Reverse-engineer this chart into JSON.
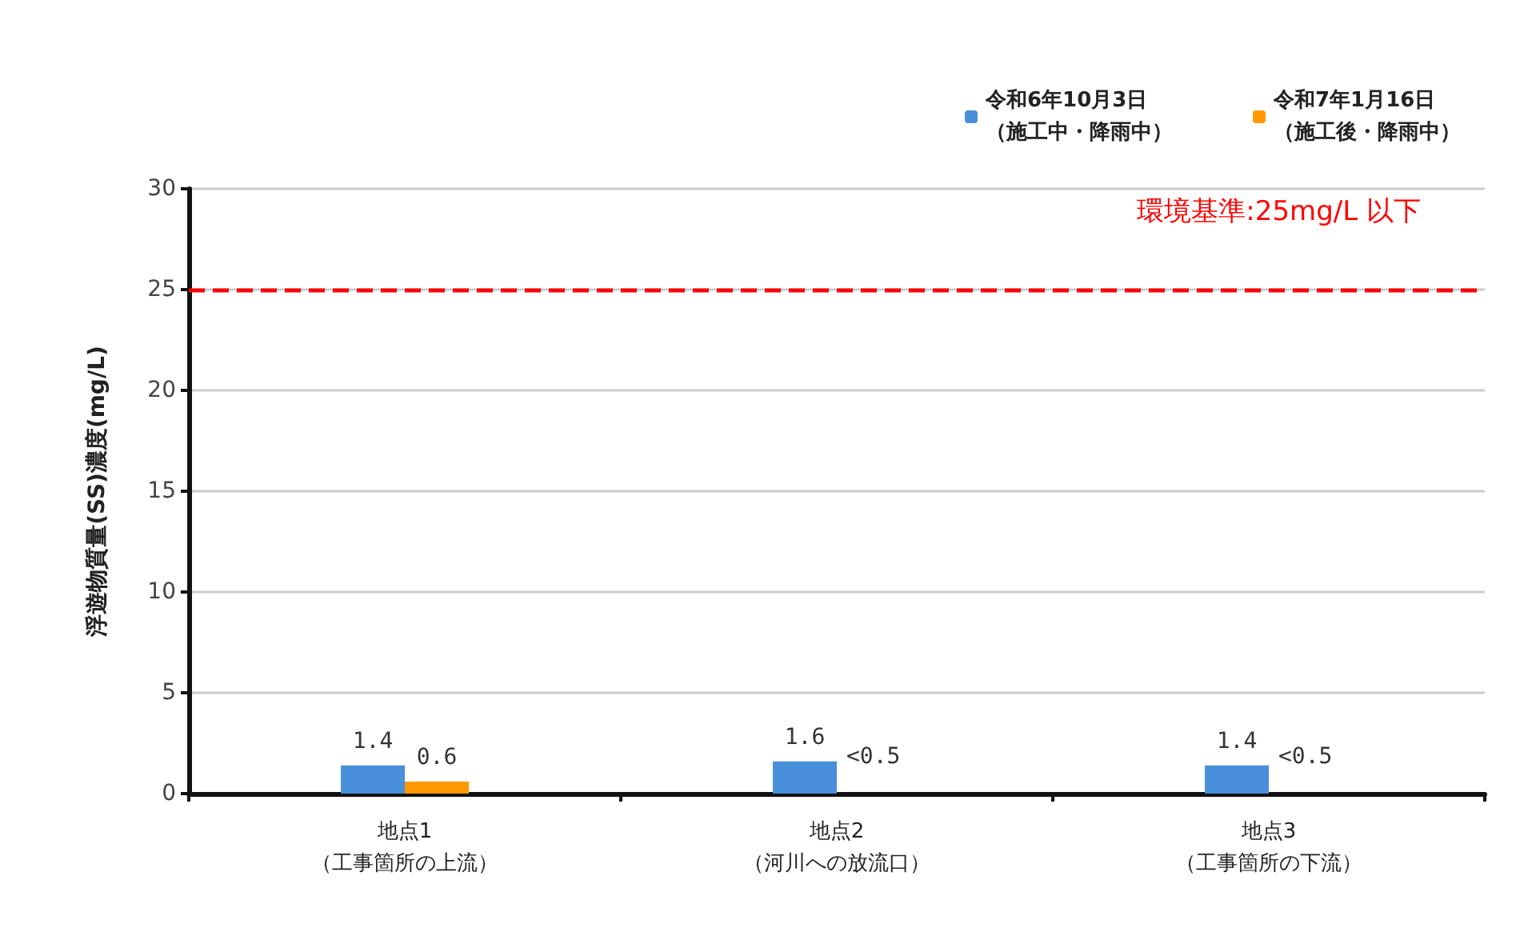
{
  "chart_data": {
    "type": "bar",
    "ylabel": "浮遊物質量(SS)濃度(mg/L)",
    "categories": [
      "地点1\n（工事箇所の上流）",
      "地点2\n（河川への放流口）",
      "地点3\n（工事箇所の下流）"
    ],
    "series": [
      {
        "name": "令和6年10月3日（施工中・降雨中）",
        "color": "#4a8fd9",
        "values": [
          1.4,
          1.6,
          1.4
        ],
        "value_labels": [
          "1.4",
          "1.6",
          "1.4"
        ]
      },
      {
        "name": "令和7年1月16日（施工後・降雨中）",
        "color": "#ff9900",
        "values": [
          0.6,
          null,
          null
        ],
        "value_labels": [
          "0.6",
          "<0.5",
          "<0.5"
        ]
      }
    ],
    "ylim": [
      0,
      30
    ],
    "yticks": [
      0,
      5,
      10,
      15,
      20,
      25,
      30
    ],
    "grid": "y",
    "legend": "top right",
    "ref_lines": [
      {
        "axis": "y",
        "value": 25,
        "label": "環境基準:25mg/L 以下",
        "color": "#ff0000",
        "line_style": "dashed"
      }
    ]
  }
}
